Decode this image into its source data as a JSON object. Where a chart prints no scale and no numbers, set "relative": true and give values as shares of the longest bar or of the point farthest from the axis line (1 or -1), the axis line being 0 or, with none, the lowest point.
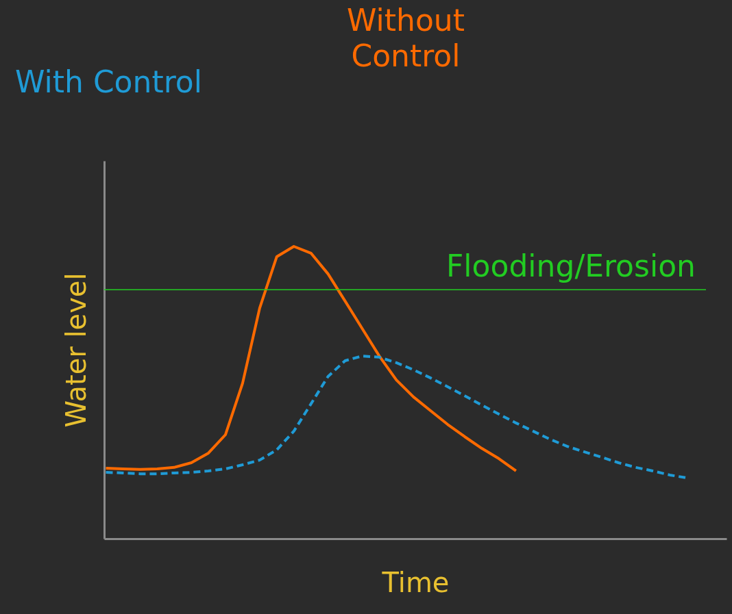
{
  "chart_data": {
    "type": "line",
    "relative": true,
    "xlabel": "Time",
    "ylabel": "Water level",
    "legend": false,
    "grid": false,
    "marker": "none",
    "categories": [
      null,
      null,
      null,
      null,
      null,
      null,
      null,
      null,
      null,
      null,
      null,
      null,
      null,
      null,
      null,
      null,
      null,
      null,
      null,
      null,
      null,
      null,
      null,
      null,
      null,
      null,
      null,
      null,
      null,
      null,
      null,
      null,
      null,
      null,
      null
    ],
    "series": [
      {
        "name": "Without Control",
        "color": "#ff6a00",
        "line_style": "solid",
        "values": [
          0.241,
          0.239,
          0.237,
          0.239,
          0.244,
          0.26,
          0.293,
          0.356,
          0.532,
          0.789,
          0.965,
          1.0,
          0.977,
          0.906,
          0.813,
          0.719,
          0.625,
          0.543,
          0.485,
          0.438,
          0.391,
          0.349,
          0.309,
          0.274,
          0.232,
          null,
          null,
          null,
          null,
          null,
          null,
          null,
          null,
          null,
          null
        ]
      },
      {
        "name": "With Control",
        "color": "#1f9bd6",
        "line_style": "dashed",
        "values": [
          0.227,
          0.225,
          0.222,
          0.222,
          0.225,
          0.227,
          0.232,
          0.239,
          0.253,
          0.269,
          0.304,
          0.368,
          0.461,
          0.555,
          0.609,
          0.625,
          0.621,
          0.602,
          0.578,
          0.55,
          0.52,
          0.489,
          0.457,
          0.426,
          0.396,
          0.368,
          0.34,
          0.316,
          0.297,
          0.279,
          0.26,
          0.244,
          0.232,
          0.218,
          0.208
        ]
      }
    ],
    "ref_lines": [
      {
        "axis": "y",
        "value": 0.852,
        "label": "Flooding/Erosion",
        "color": "#22cc22"
      }
    ]
  }
}
